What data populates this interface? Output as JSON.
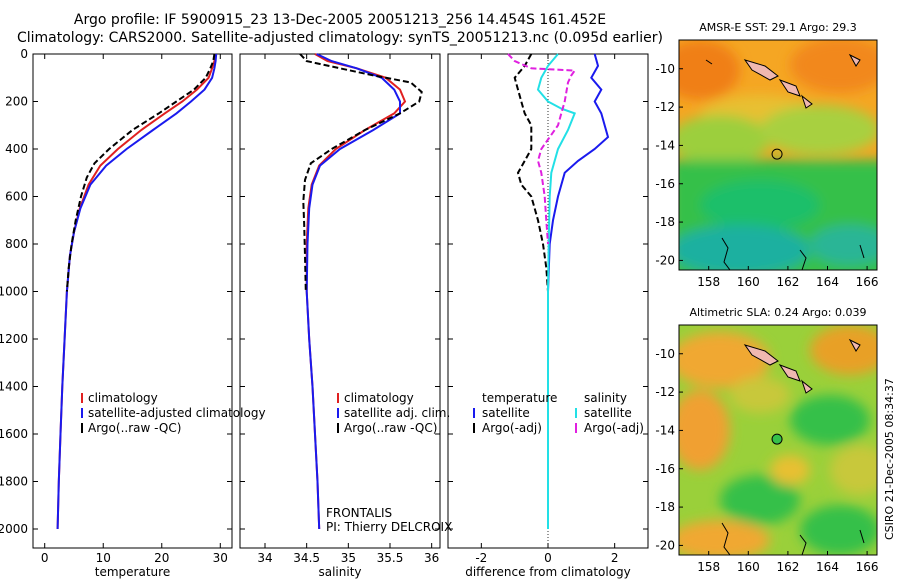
{
  "header": {
    "line1": "Argo profile: IF 5900915_23 13-Dec-2005 20051213_256 14.454S 161.452E",
    "line2": "Climatology: CARS2000. Satellite-adjusted climatology: synTS_20051213.nc (0.095d earlier)"
  },
  "side_text": "CSIRO 21-Dec-2005 08:34:37",
  "colors": {
    "climatology": "#e02020",
    "satellite": "#1a1aee",
    "argo": "#000000",
    "sat_salinity": "#22e0e6",
    "argo_adj_salinity": "#e020e0",
    "map_warm": "#f5a623",
    "map_green": "#36c04a",
    "land": "#f0b8b0"
  },
  "chart_data": [
    {
      "type": "line",
      "id": "temperature",
      "xlabel": "temperature",
      "ylabel": "",
      "xlim": [
        -2,
        32
      ],
      "ylim": [
        0,
        2080
      ],
      "y_reversed": true,
      "xticks": [
        0,
        10,
        20,
        30
      ],
      "yticks": [
        0,
        200,
        400,
        600,
        800,
        1000,
        1200,
        1400,
        1600,
        1800,
        2000
      ],
      "legend": [
        "climatology",
        "satellite-adjusted climatology",
        "Argo(..raw -QC)"
      ],
      "series": [
        {
          "name": "climatology",
          "color": "#e02020",
          "dash": false,
          "points": [
            [
              29.2,
              0
            ],
            [
              29.0,
              30
            ],
            [
              28.6,
              60
            ],
            [
              28.0,
              100
            ],
            [
              26.0,
              150
            ],
            [
              23.5,
              200
            ],
            [
              20.5,
              250
            ],
            [
              16.5,
              320
            ],
            [
              12.5,
              400
            ],
            [
              9.5,
              470
            ],
            [
              7.5,
              550
            ],
            [
              6.0,
              650
            ],
            [
              5.0,
              750
            ],
            [
              4.3,
              850
            ],
            [
              3.8,
              1000
            ],
            [
              3.4,
              1200
            ],
            [
              3.0,
              1400
            ],
            [
              2.7,
              1600
            ],
            [
              2.4,
              1800
            ],
            [
              2.2,
              2000
            ]
          ]
        },
        {
          "name": "satellite-adjusted climatology",
          "color": "#1a1aee",
          "dash": false,
          "points": [
            [
              29.3,
              0
            ],
            [
              29.2,
              30
            ],
            [
              29.0,
              60
            ],
            [
              28.6,
              100
            ],
            [
              27.3,
              150
            ],
            [
              25.0,
              200
            ],
            [
              22.5,
              250
            ],
            [
              18.5,
              320
            ],
            [
              14.0,
              400
            ],
            [
              10.5,
              470
            ],
            [
              7.8,
              550
            ],
            [
              6.1,
              650
            ],
            [
              5.0,
              750
            ],
            [
              4.3,
              850
            ],
            [
              3.8,
              1000
            ],
            [
              3.4,
              1200
            ],
            [
              3.0,
              1400
            ],
            [
              2.7,
              1600
            ],
            [
              2.4,
              1800
            ],
            [
              2.2,
              2000
            ]
          ]
        },
        {
          "name": "Argo(..raw -QC)",
          "color": "#000000",
          "dash": true,
          "points": [
            [
              29.0,
              0
            ],
            [
              28.8,
              30
            ],
            [
              28.3,
              60
            ],
            [
              27.5,
              100
            ],
            [
              25.5,
              150
            ],
            [
              22.5,
              200
            ],
            [
              19.5,
              250
            ],
            [
              15.0,
              320
            ],
            [
              11.0,
              400
            ],
            [
              8.5,
              460
            ],
            [
              7.2,
              520
            ],
            [
              6.2,
              600
            ],
            [
              5.3,
              700
            ],
            [
              4.6,
              800
            ],
            [
              4.1,
              900
            ],
            [
              3.8,
              1000
            ]
          ]
        }
      ]
    },
    {
      "type": "line",
      "id": "salinity",
      "xlabel": "salinity",
      "xlim": [
        33.7,
        36.1
      ],
      "ylim": [
        0,
        2080
      ],
      "y_reversed": true,
      "xticks": [
        34,
        34.5,
        35,
        35.5,
        36
      ],
      "legend": [
        "climatology",
        "satellite adj. clim.",
        "Argo(..raw -QC)"
      ],
      "annotations": [
        "FRONTALIS",
        "PI: Thierry DELCROIX"
      ],
      "series": [
        {
          "name": "climatology",
          "color": "#e02020",
          "dash": false,
          "points": [
            [
              34.6,
              0
            ],
            [
              34.75,
              30
            ],
            [
              35.1,
              60
            ],
            [
              35.45,
              100
            ],
            [
              35.62,
              150
            ],
            [
              35.68,
              200
            ],
            [
              35.55,
              250
            ],
            [
              35.2,
              320
            ],
            [
              34.85,
              400
            ],
            [
              34.65,
              470
            ],
            [
              34.56,
              550
            ],
            [
              34.52,
              650
            ],
            [
              34.5,
              800
            ],
            [
              34.5,
              1000
            ],
            [
              34.53,
              1200
            ],
            [
              34.57,
              1400
            ],
            [
              34.6,
              1600
            ],
            [
              34.63,
              1800
            ],
            [
              34.65,
              2000
            ]
          ]
        },
        {
          "name": "satellite adj. clim.",
          "color": "#1a1aee",
          "dash": false,
          "points": [
            [
              34.62,
              0
            ],
            [
              34.8,
              30
            ],
            [
              35.1,
              60
            ],
            [
              35.4,
              100
            ],
            [
              35.55,
              150
            ],
            [
              35.62,
              200
            ],
            [
              35.62,
              250
            ],
            [
              35.3,
              320
            ],
            [
              34.9,
              400
            ],
            [
              34.66,
              470
            ],
            [
              34.57,
              550
            ],
            [
              34.53,
              650
            ],
            [
              34.51,
              800
            ],
            [
              34.5,
              1000
            ],
            [
              34.53,
              1200
            ],
            [
              34.57,
              1400
            ],
            [
              34.6,
              1600
            ],
            [
              34.63,
              1800
            ],
            [
              34.65,
              2000
            ]
          ]
        },
        {
          "name": "Argo(..raw -QC)",
          "color": "#000000",
          "dash": true,
          "points": [
            [
              34.42,
              0
            ],
            [
              34.5,
              30
            ],
            [
              34.9,
              60
            ],
            [
              35.3,
              90
            ],
            [
              35.75,
              120
            ],
            [
              35.88,
              160
            ],
            [
              35.85,
              200
            ],
            [
              35.62,
              250
            ],
            [
              35.2,
              320
            ],
            [
              34.8,
              400
            ],
            [
              34.55,
              460
            ],
            [
              34.48,
              530
            ],
            [
              34.46,
              620
            ],
            [
              34.47,
              720
            ],
            [
              34.48,
              850
            ],
            [
              34.49,
              1000
            ]
          ]
        }
      ]
    },
    {
      "type": "line",
      "id": "difference",
      "xlabel": "difference from climatology",
      "xlim": [
        -3,
        3
      ],
      "ylim": [
        0,
        2080
      ],
      "y_reversed": true,
      "xticks": [
        -2,
        0,
        2
      ],
      "legend_headers": [
        "temperature",
        "salinity"
      ],
      "legend": [
        "satellite",
        "Argo(-adj)",
        "satellite",
        "Argo(-adj)"
      ],
      "series": [
        {
          "name": "satellite",
          "group": "temperature",
          "color": "#1a1aee",
          "dash": false,
          "points": [
            [
              1.4,
              0
            ],
            [
              1.5,
              50
            ],
            [
              1.3,
              100
            ],
            [
              1.6,
              150
            ],
            [
              1.4,
              200
            ],
            [
              1.6,
              250
            ],
            [
              1.8,
              350
            ],
            [
              1.4,
              400
            ],
            [
              0.9,
              450
            ],
            [
              0.5,
              500
            ],
            [
              0.3,
              600
            ],
            [
              0.15,
              700
            ],
            [
              0.05,
              800
            ],
            [
              0,
              1000
            ],
            [
              0,
              1400
            ],
            [
              0,
              2000
            ]
          ]
        },
        {
          "name": "Argo(-adj)",
          "group": "temperature",
          "color": "#000000",
          "dash": true,
          "points": [
            [
              -0.5,
              0
            ],
            [
              -0.7,
              50
            ],
            [
              -1.0,
              100
            ],
            [
              -0.8,
              200
            ],
            [
              -0.7,
              250
            ],
            [
              -0.5,
              300
            ],
            [
              -0.5,
              400
            ],
            [
              -0.7,
              450
            ],
            [
              -0.9,
              500
            ],
            [
              -0.8,
              550
            ],
            [
              -0.5,
              600
            ],
            [
              -0.3,
              700
            ],
            [
              -0.15,
              800
            ],
            [
              -0.05,
              900
            ],
            [
              0,
              1000
            ]
          ]
        },
        {
          "name": "satellite",
          "group": "salinity",
          "color": "#22e0e6",
          "dash": false,
          "points": [
            [
              0.3,
              0
            ],
            [
              0.0,
              50
            ],
            [
              -0.2,
              100
            ],
            [
              -0.3,
              150
            ],
            [
              0.0,
              200
            ],
            [
              0.4,
              230
            ],
            [
              0.8,
              250
            ],
            [
              0.6,
              320
            ],
            [
              0.3,
              400
            ],
            [
              0.1,
              500
            ],
            [
              0.05,
              600
            ],
            [
              0.02,
              800
            ],
            [
              0,
              1000
            ],
            [
              0,
              1400
            ],
            [
              0,
              2000
            ]
          ]
        },
        {
          "name": "Argo(-adj)",
          "group": "salinity",
          "color": "#e020e0",
          "dash": true,
          "points": [
            [
              -1.2,
              0
            ],
            [
              -1.0,
              30
            ],
            [
              -0.5,
              60
            ],
            [
              0.8,
              70
            ],
            [
              0.7,
              90
            ],
            [
              0.6,
              120
            ],
            [
              0.5,
              200
            ],
            [
              0.4,
              250
            ],
            [
              0.3,
              300
            ],
            [
              -0.2,
              400
            ],
            [
              -0.3,
              450
            ],
            [
              -0.2,
              500
            ],
            [
              -0.1,
              600
            ],
            [
              -0.05,
              700
            ],
            [
              0,
              800
            ]
          ]
        }
      ]
    },
    {
      "type": "heatmap",
      "id": "sst_map",
      "title": "AMSR-E SST: 29.1 Argo: 29.3",
      "xticks": [
        158,
        160,
        162,
        164,
        166
      ],
      "yticks": [
        -10,
        -12,
        -14,
        -16,
        -18,
        -20
      ],
      "xlim": [
        156.5,
        166.5
      ],
      "ylim": [
        -20.5,
        -8.5
      ],
      "marker": {
        "lon": 161.452,
        "lat": -14.454,
        "color": "#36c04a"
      }
    },
    {
      "type": "heatmap",
      "id": "sla_map",
      "title": "Altimetric SLA: 0.24 Argo: 0.039",
      "xticks": [
        158,
        160,
        162,
        164,
        166
      ],
      "yticks": [
        -10,
        -12,
        -14,
        -16,
        -18,
        -20
      ],
      "xlim": [
        156.5,
        166.5
      ],
      "ylim": [
        -20.5,
        -8.5
      ],
      "marker": {
        "lon": 161.452,
        "lat": -14.454,
        "color": "#36c04a"
      }
    }
  ]
}
